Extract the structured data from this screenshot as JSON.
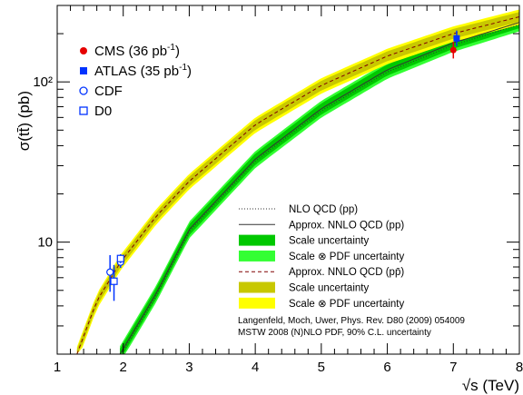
{
  "chart_data": {
    "type": "line",
    "xlabel": "√s (TeV)",
    "ylabel": "σ(tt̄) (pb)",
    "xlim": [
      1,
      8
    ],
    "ylim": [
      2,
      300
    ],
    "yscale": "log",
    "x_ticks": [
      "1",
      "2",
      "3",
      "4",
      "5",
      "6",
      "7",
      "8"
    ],
    "y_ticks": [
      {
        "value": 10,
        "label": "10"
      },
      {
        "value": 100,
        "label": "10²"
      }
    ],
    "grid": false,
    "legend_position": "top-left and bottom-right",
    "colors": {
      "pp_scale": "#00c800",
      "pp_scale_pdf": "#33ff33",
      "ppbar_scale": "#c8c800",
      "ppbar_scale_pdf": "#ffff00",
      "cms": "#e60000",
      "blue": "#0033ff"
    },
    "bands": [
      {
        "id": "pp",
        "x": [
          1.95,
          2.5,
          3,
          4,
          5,
          6,
          7,
          8
        ],
        "y": [
          2,
          4.8,
          12,
          33,
          68,
          119,
          175,
          235
        ],
        "width_scale": 0.08,
        "width_total": 0.12
      },
      {
        "id": "ppbar",
        "x": [
          1.3,
          1.6,
          1.96,
          2.5,
          3,
          4,
          5,
          6,
          7,
          8
        ],
        "y": [
          2,
          4.3,
          7.5,
          14.5,
          24,
          54,
          95,
          145,
          200,
          255
        ],
        "width_scale": 0.07,
        "width_total": 0.11
      }
    ],
    "points": [
      {
        "name": "CMS",
        "x": 7.0,
        "y": 158,
        "err_low": 18,
        "err_high": 20
      },
      {
        "name": "ATLAS",
        "x": 7.05,
        "y": 187,
        "err_low": 20,
        "err_high": 22
      },
      {
        "name": "CDF",
        "x": 1.96,
        "y": 7.5,
        "err_low": 0.6,
        "err_high": 0.6
      },
      {
        "name": "CDF",
        "x": 1.8,
        "y": 6.5,
        "err_low": 1.6,
        "err_high": 1.8
      },
      {
        "name": "D0",
        "x": 1.96,
        "y": 7.9,
        "err_low": 0.5,
        "err_high": 0.5
      },
      {
        "name": "D0",
        "x": 1.86,
        "y": 5.7,
        "err_low": 1.4,
        "err_high": 1.5
      }
    ]
  },
  "legend_top": [
    {
      "label": "CMS (36 pb",
      "sup": "-1",
      "tail": ")",
      "marker": "filled-circle",
      "color": "#e60000"
    },
    {
      "label": "ATLAS (35 pb",
      "sup": "-1",
      "tail": ")",
      "marker": "filled-square",
      "color": "#0033ff"
    },
    {
      "label": "CDF",
      "sup": "",
      "tail": "",
      "marker": "open-circle",
      "color": "#0033ff"
    },
    {
      "label": "D0",
      "sup": "",
      "tail": "",
      "marker": "open-square",
      "color": "#0033ff"
    }
  ],
  "legend_bottom": [
    {
      "label": "NLO QCD (pp)",
      "style": "dotted"
    },
    {
      "label": "Approx. NNLO QCD (pp)",
      "style": "solid"
    },
    {
      "label": "Scale uncertainty",
      "style": "box",
      "color": "#00c800"
    },
    {
      "label": "Scale ⊗ PDF uncertainty",
      "style": "box",
      "color": "#33ff33"
    },
    {
      "label": "Approx. NNLO QCD (pp̄)",
      "style": "dashed"
    },
    {
      "label": "Scale uncertainty",
      "style": "box",
      "color": "#c8c800"
    },
    {
      "label": "Scale ⊗ PDF uncertainty",
      "style": "box",
      "color": "#ffff00"
    }
  ],
  "reference_lines": [
    "Langenfeld, Moch, Uwer, Phys. Rev. D80 (2009) 054009",
    "MSTW 2008 (N)NLO PDF, 90% C.L. uncertainty"
  ]
}
